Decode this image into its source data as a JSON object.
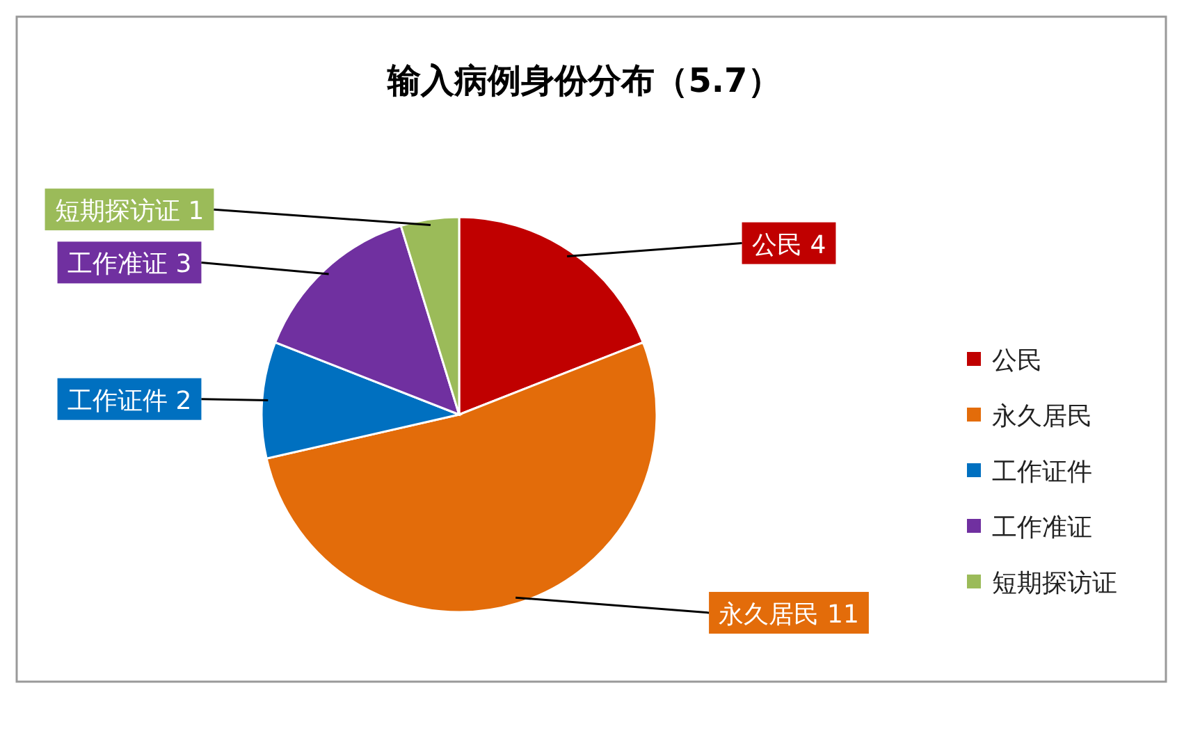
{
  "chart_data": {
    "type": "pie",
    "title": "输入病例身份分布（5.7）",
    "categories": [
      "公民",
      "永久居民",
      "工作证件",
      "工作准证",
      "短期探访证"
    ],
    "values": [
      4,
      11,
      2,
      3,
      1
    ],
    "colors": [
      "#c00000",
      "#e36c0a",
      "#0070c0",
      "#7030a0",
      "#9bbb59"
    ],
    "data_labels": true,
    "legend": "right"
  }
}
